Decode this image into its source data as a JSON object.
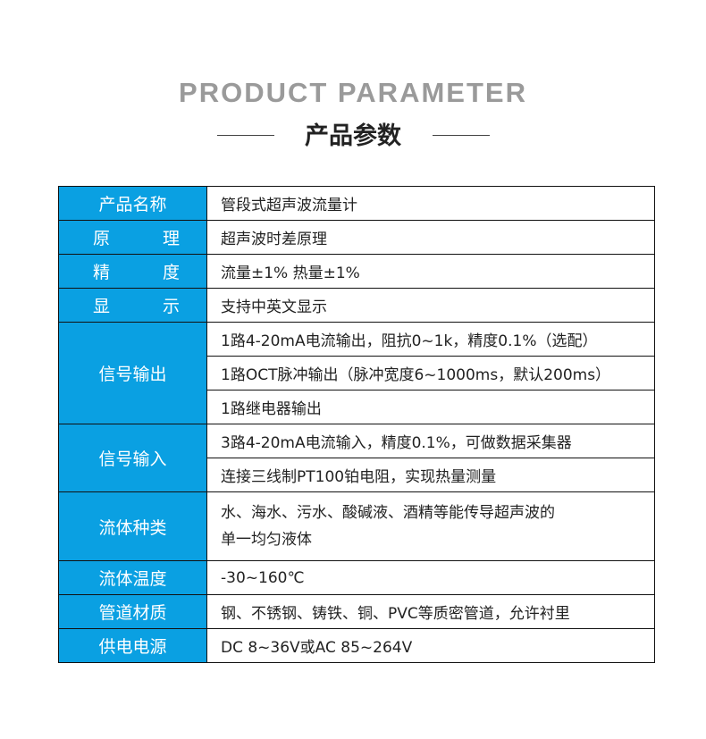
{
  "header": {
    "title_en": "PRODUCT PARAMETER",
    "title_cn": "产品参数"
  },
  "rows": [
    {
      "label": "产品名称",
      "values": [
        "管段式超声波流量计"
      ]
    },
    {
      "label_chars": [
        "原",
        "理"
      ],
      "values": [
        "超声波时差原理"
      ]
    },
    {
      "label_chars": [
        "精",
        "度"
      ],
      "values": [
        "流量±1% 热量±1%"
      ]
    },
    {
      "label_chars": [
        "显",
        "示"
      ],
      "values": [
        "支持中英文显示"
      ]
    },
    {
      "label": "信号输出",
      "values": [
        "1路4-20mA电流输出，阻抗0~1k，精度0.1%（选配）",
        "1路OCT脉冲输出（脉冲宽度6~1000ms，默认200ms）",
        "1路继电器输出"
      ]
    },
    {
      "label": "信号输入",
      "values": [
        "3路4-20mA电流输入，精度0.1%，可做数据采集器",
        "连接三线制PT100铂电阻，实现热量测量"
      ]
    },
    {
      "label": "流体种类",
      "values": [
        "水、海水、污水、酸碱液、酒精等能传导超声波的",
        "单一均匀液体"
      ]
    },
    {
      "label": "流体温度",
      "values": [
        "-30~160℃"
      ]
    },
    {
      "label": "管道材质",
      "values": [
        "钢、不锈钢、铸铁、铜、PVC等质密管道，允许衬里"
      ]
    },
    {
      "label": "供电电源",
      "values": [
        "DC 8~36V或AC 85~264V"
      ]
    }
  ],
  "colors": {
    "label_bg": "#0aa0e2",
    "title_gray": "#9a9a9a"
  }
}
